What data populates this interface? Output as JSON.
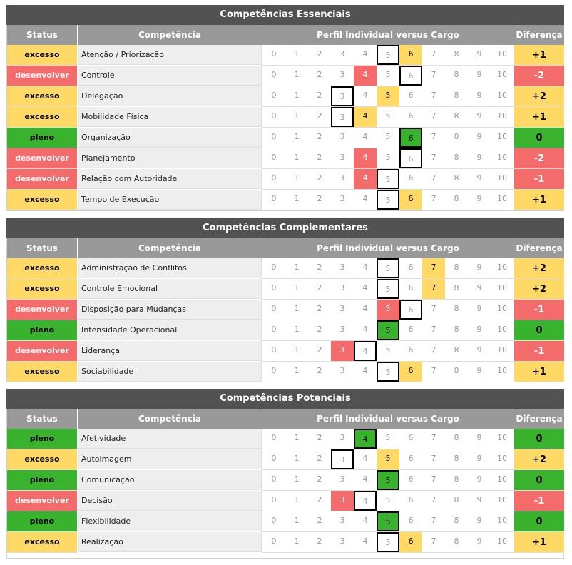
{
  "scale_labels": [
    "0",
    "1",
    "2",
    "3",
    "4",
    "5",
    "6",
    "7",
    "8",
    "9",
    "10"
  ],
  "headers": {
    "status": "Status",
    "competencia": "Competência",
    "perfil": "Perfil Individual versus Cargo",
    "diferenca": "Diferença"
  },
  "sections": [
    {
      "title": "Competências Essenciais",
      "rows": [
        {
          "status": "excesso",
          "competencia": "Atenção / Priorização",
          "individual": 6,
          "cargo": 5,
          "diferenca": "+1"
        },
        {
          "status": "desenvolver",
          "competencia": "Controle",
          "individual": 4,
          "cargo": 6,
          "diferenca": "-2"
        },
        {
          "status": "excesso",
          "competencia": "Delegação",
          "individual": 5,
          "cargo": 3,
          "diferenca": "+2"
        },
        {
          "status": "excesso",
          "competencia": "Mobilidade Física",
          "individual": 4,
          "cargo": 3,
          "diferenca": "+1"
        },
        {
          "status": "pleno",
          "competencia": "Organização",
          "individual": 6,
          "cargo": 6,
          "diferenca": "0"
        },
        {
          "status": "desenvolver",
          "competencia": "Planejamento",
          "individual": 4,
          "cargo": 6,
          "diferenca": "-2"
        },
        {
          "status": "desenvolver",
          "competencia": "Relação com Autoridade",
          "individual": 4,
          "cargo": 5,
          "diferenca": "-1"
        },
        {
          "status": "excesso",
          "competencia": "Tempo de Execução",
          "individual": 6,
          "cargo": 5,
          "diferenca": "+1"
        }
      ]
    },
    {
      "title": "Competências Complementares",
      "rows": [
        {
          "status": "excesso",
          "competencia": "Administração de Conflitos",
          "individual": 7,
          "cargo": 5,
          "diferenca": "+2"
        },
        {
          "status": "excesso",
          "competencia": "Controle Emocional",
          "individual": 7,
          "cargo": 5,
          "diferenca": "+2"
        },
        {
          "status": "desenvolver",
          "competencia": "Disposição para Mudanças",
          "individual": 5,
          "cargo": 6,
          "diferenca": "-1"
        },
        {
          "status": "pleno",
          "competencia": "Intensidade Operacional",
          "individual": 5,
          "cargo": 5,
          "diferenca": "0"
        },
        {
          "status": "desenvolver",
          "competencia": "Liderança",
          "individual": 3,
          "cargo": 4,
          "diferenca": "-1"
        },
        {
          "status": "excesso",
          "competencia": "Sociabilidade",
          "individual": 6,
          "cargo": 5,
          "diferenca": "+1"
        }
      ]
    },
    {
      "title": "Competências Potenciais",
      "rows": [
        {
          "status": "pleno",
          "competencia": "Afetividade",
          "individual": 4,
          "cargo": 4,
          "diferenca": "0"
        },
        {
          "status": "excesso",
          "competencia": "Autoimagem",
          "individual": 5,
          "cargo": 3,
          "diferenca": "+2"
        },
        {
          "status": "pleno",
          "competencia": "Comunicação",
          "individual": 5,
          "cargo": 5,
          "diferenca": "0"
        },
        {
          "status": "desenvolver",
          "competencia": "Decisão",
          "individual": 3,
          "cargo": 4,
          "diferenca": "-1"
        },
        {
          "status": "pleno",
          "competencia": "Flexibilidade",
          "individual": 5,
          "cargo": 5,
          "diferenca": "0"
        },
        {
          "status": "excesso",
          "competencia": "Realização",
          "individual": 6,
          "cargo": 5,
          "diferenca": "+1"
        }
      ]
    }
  ],
  "colors": {
    "excesso": "#ffd966",
    "desenvolver": "#f46b6b",
    "pleno": "#39b22d",
    "title_bar": "#525252",
    "header": "#999999"
  }
}
